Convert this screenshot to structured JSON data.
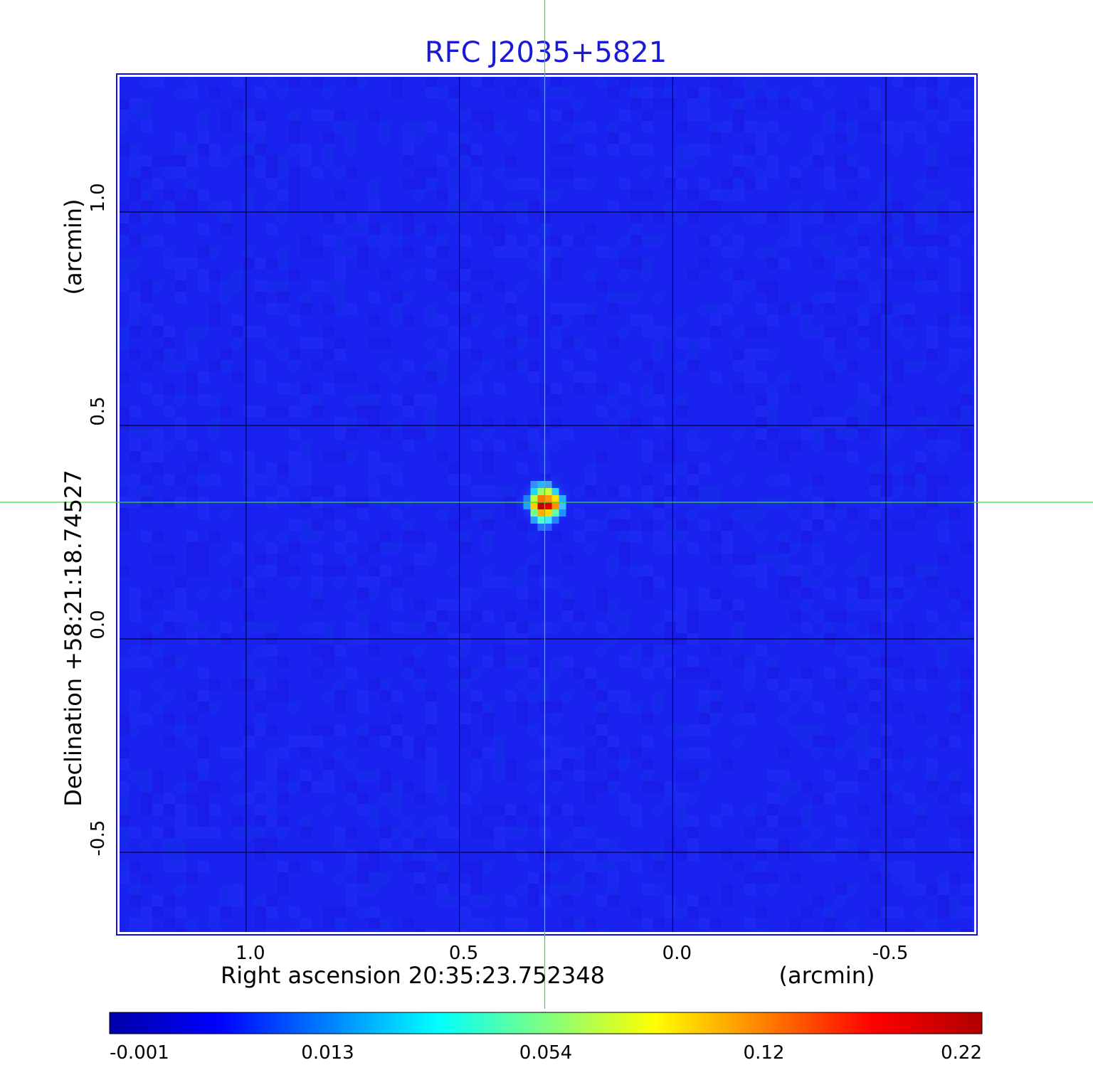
{
  "chart_data": {
    "type": "heatmap",
    "title": "RFC J2035+5821",
    "xlabel": "Right ascension  20:35:23.752348",
    "xunit": "(arcmin)",
    "ylabel": "Declination  +58:21:18.74527",
    "yunit": "(arcmin)",
    "xlim": [
      1.3,
      -0.71
    ],
    "ylim": [
      -0.69,
      1.32
    ],
    "x_ticks": [
      {
        "value": 1.0,
        "label": "1.0"
      },
      {
        "value": 0.5,
        "label": "0.5"
      },
      {
        "value": 0.0,
        "label": "0.0"
      },
      {
        "value": -0.5,
        "label": "-0.5"
      }
    ],
    "y_ticks": [
      {
        "value": 1.0,
        "label": "1.0"
      },
      {
        "value": 0.5,
        "label": "0.5"
      },
      {
        "value": 0.0,
        "label": "0.0"
      },
      {
        "value": -0.5,
        "label": "-0.5"
      }
    ],
    "grid": true,
    "crosshair": {
      "x": 0.3,
      "y": 0.32
    },
    "source": {
      "x": 0.3,
      "y": 0.32,
      "peak": 0.22
    },
    "colorbar": {
      "ticks": [
        {
          "value": -0.001,
          "label": "-0.001"
        },
        {
          "value": 0.013,
          "label": "0.013"
        },
        {
          "value": 0.054,
          "label": "0.054"
        },
        {
          "value": 0.12,
          "label": "0.12"
        },
        {
          "value": 0.22,
          "label": "0.22"
        }
      ],
      "colormap": [
        "#0000a8",
        "#0000ff",
        "#0080ff",
        "#00ffff",
        "#80ff80",
        "#ffff00",
        "#ff8000",
        "#ff0000",
        "#b00000"
      ]
    },
    "colors": {
      "background": "#1a22f0",
      "frame": "#1010d0",
      "title": "#1a1ad6",
      "crosshair": "#33dd33",
      "grid": "#000000"
    }
  }
}
